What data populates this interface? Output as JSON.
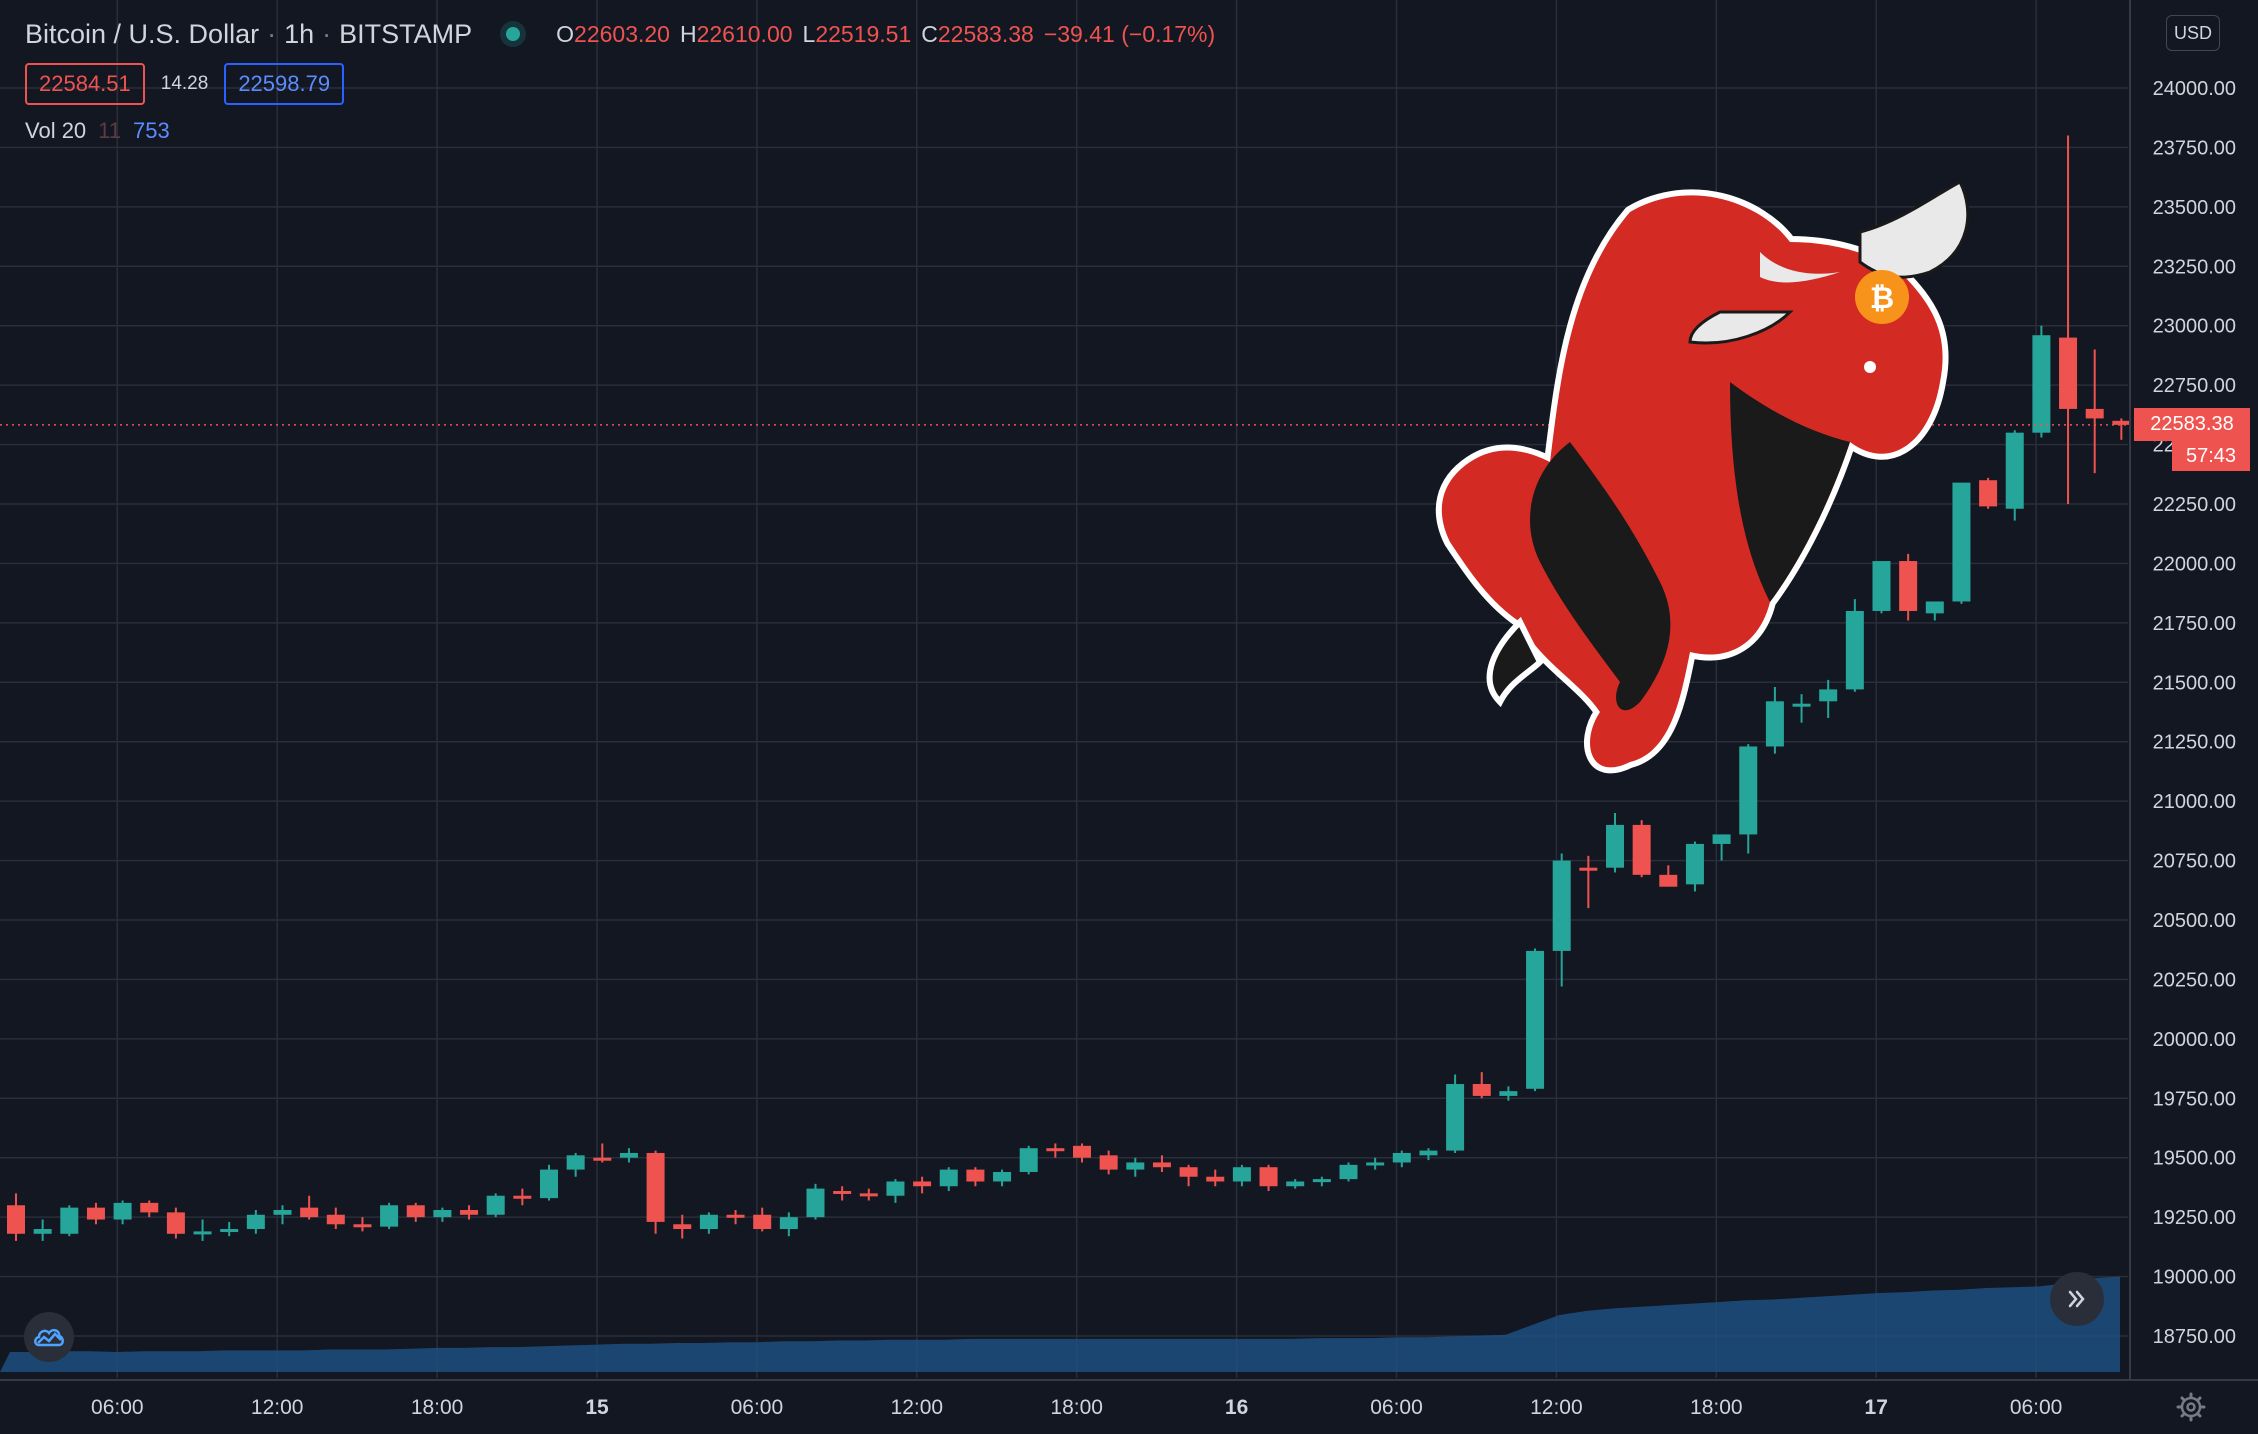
{
  "header": {
    "symbol": "Bitcoin / U.S. Dollar",
    "interval": "1h",
    "exchange": "BITSTAMP",
    "ohlc": {
      "o_label": "O",
      "o_value": "22603.20",
      "h_label": "H",
      "h_value": "22610.00",
      "l_label": "L",
      "l_value": "22519.51",
      "c_label": "C",
      "c_value": "22583.38",
      "change": "−39.41 (−0.17%)"
    },
    "sell_price": "22584.51",
    "spread": "14.28",
    "buy_price": "22598.79",
    "volume": {
      "label": "Vol 20",
      "v1": "11",
      "v2": "753"
    }
  },
  "price_scale": {
    "currency": "USD",
    "last_price": "22583.38",
    "countdown": "57:43"
  },
  "colors": {
    "up": "#26a69a",
    "down": "#ef5350",
    "background": "#131722",
    "grid": "#2a2e39",
    "volume_area": "#1f4f80"
  },
  "icons": {
    "logo": "tradingview-cloud-icon",
    "scroll": "double-chevron-right-icon",
    "settings": "gear-icon",
    "mascot": "bitcoin-bull-icon"
  },
  "chart_data": {
    "type": "candlestick",
    "y_ticks": [
      "24000.00",
      "23750.00",
      "23500.00",
      "23250.00",
      "23000.00",
      "22750.00",
      "22500.00",
      "22250.00",
      "22000.00",
      "21750.00",
      "21500.00",
      "21250.00",
      "21000.00",
      "20750.00",
      "20500.00",
      "20250.00",
      "20000.00",
      "19750.00",
      "19500.00",
      "19250.00",
      "19000.00",
      "18750.00"
    ],
    "y_tick_values": [
      24000,
      23750,
      23500,
      23250,
      23000,
      22750,
      22500,
      22250,
      22000,
      21750,
      21500,
      21250,
      21000,
      20750,
      20500,
      20250,
      20000,
      19750,
      19500,
      19250,
      19000,
      18750
    ],
    "ylim": [
      18600,
      24200
    ],
    "x_ticks": [
      {
        "label": "06:00",
        "index": 2
      },
      {
        "label": "12:00",
        "index": 8
      },
      {
        "label": "18:00",
        "index": 14
      },
      {
        "label": "15",
        "index": 20,
        "bold": true
      },
      {
        "label": "06:00",
        "index": 26
      },
      {
        "label": "12:00",
        "index": 32
      },
      {
        "label": "18:00",
        "index": 38
      },
      {
        "label": "16",
        "index": 44,
        "bold": true
      },
      {
        "label": "06:00",
        "index": 50
      },
      {
        "label": "12:00",
        "index": 56
      },
      {
        "label": "18:00",
        "index": 62
      },
      {
        "label": "17",
        "index": 68,
        "bold": true
      },
      {
        "label": "06:00",
        "index": 74
      }
    ],
    "candles": [
      [
        19300,
        19350,
        19150,
        19180
      ],
      [
        19180,
        19240,
        19150,
        19200
      ],
      [
        19180,
        19300,
        19170,
        19290
      ],
      [
        19290,
        19310,
        19220,
        19240
      ],
      [
        19240,
        19320,
        19220,
        19310
      ],
      [
        19310,
        19320,
        19250,
        19270
      ],
      [
        19270,
        19290,
        19160,
        19180
      ],
      [
        19180,
        19240,
        19150,
        19190
      ],
      [
        19190,
        19230,
        19170,
        19200
      ],
      [
        19200,
        19280,
        19180,
        19260
      ],
      [
        19260,
        19300,
        19220,
        19280
      ],
      [
        19290,
        19340,
        19240,
        19250
      ],
      [
        19260,
        19290,
        19200,
        19220
      ],
      [
        19220,
        19250,
        19190,
        19210
      ],
      [
        19210,
        19310,
        19200,
        19300
      ],
      [
        19300,
        19310,
        19230,
        19250
      ],
      [
        19250,
        19290,
        19230,
        19280
      ],
      [
        19280,
        19300,
        19240,
        19260
      ],
      [
        19260,
        19350,
        19250,
        19340
      ],
      [
        19340,
        19370,
        19300,
        19330
      ],
      [
        19330,
        19470,
        19320,
        19450
      ],
      [
        19450,
        19520,
        19420,
        19510
      ],
      [
        19500,
        19560,
        19480,
        19490
      ],
      [
        19500,
        19540,
        19480,
        19520
      ],
      [
        19520,
        19530,
        19180,
        19230
      ],
      [
        19220,
        19260,
        19160,
        19200
      ],
      [
        19200,
        19270,
        19180,
        19260
      ],
      [
        19260,
        19280,
        19220,
        19250
      ],
      [
        19260,
        19290,
        19190,
        19200
      ],
      [
        19200,
        19270,
        19170,
        19250
      ],
      [
        19250,
        19390,
        19240,
        19370
      ],
      [
        19360,
        19380,
        19320,
        19350
      ],
      [
        19350,
        19370,
        19320,
        19340
      ],
      [
        19340,
        19410,
        19310,
        19400
      ],
      [
        19400,
        19420,
        19350,
        19380
      ],
      [
        19380,
        19460,
        19360,
        19450
      ],
      [
        19450,
        19460,
        19380,
        19400
      ],
      [
        19400,
        19450,
        19380,
        19440
      ],
      [
        19440,
        19550,
        19430,
        19540
      ],
      [
        19540,
        19560,
        19500,
        19530
      ],
      [
        19550,
        19560,
        19480,
        19500
      ],
      [
        19510,
        19530,
        19430,
        19450
      ],
      [
        19450,
        19500,
        19420,
        19480
      ],
      [
        19480,
        19510,
        19440,
        19460
      ],
      [
        19460,
        19470,
        19380,
        19420
      ],
      [
        19420,
        19450,
        19380,
        19400
      ],
      [
        19400,
        19470,
        19380,
        19460
      ],
      [
        19460,
        19470,
        19360,
        19380
      ],
      [
        19380,
        19410,
        19370,
        19400
      ],
      [
        19400,
        19420,
        19380,
        19410
      ],
      [
        19410,
        19480,
        19400,
        19470
      ],
      [
        19470,
        19500,
        19450,
        19480
      ],
      [
        19480,
        19530,
        19460,
        19520
      ],
      [
        19510,
        19540,
        19490,
        19530
      ],
      [
        19530,
        19850,
        19520,
        19810
      ],
      [
        19810,
        19860,
        19750,
        19760
      ],
      [
        19760,
        19800,
        19740,
        19780
      ],
      [
        19790,
        20380,
        19780,
        20370
      ],
      [
        20370,
        20780,
        20220,
        20750
      ],
      [
        20720,
        20770,
        20550,
        20710
      ],
      [
        20720,
        20950,
        20700,
        20900
      ],
      [
        20900,
        20920,
        20680,
        20690
      ],
      [
        20690,
        20730,
        20650,
        20640
      ],
      [
        20650,
        20830,
        20620,
        20820
      ],
      [
        20820,
        20860,
        20750,
        20860
      ],
      [
        20860,
        21240,
        20780,
        21230
      ],
      [
        21230,
        21480,
        21200,
        21420
      ],
      [
        21400,
        21450,
        21330,
        21410
      ],
      [
        21420,
        21510,
        21350,
        21470
      ],
      [
        21470,
        21850,
        21460,
        21800
      ],
      [
        21800,
        22000,
        21790,
        22010
      ],
      [
        22010,
        22040,
        21760,
        21800
      ],
      [
        21790,
        21830,
        21760,
        21840
      ],
      [
        21840,
        22330,
        21830,
        22340
      ],
      [
        22350,
        22360,
        22230,
        22240
      ],
      [
        22230,
        22560,
        22180,
        22550
      ],
      [
        22550,
        23000,
        22530,
        22960
      ],
      [
        22950,
        23800,
        22250,
        22650
      ],
      [
        22650,
        22900,
        22380,
        22610
      ],
      [
        22600,
        22610,
        22520,
        22583
      ]
    ],
    "volume_area": [
      0.0,
      0.0,
      0.01,
      0.01,
      0.0,
      0.01,
      0.01,
      0.01,
      0.02,
      0.02,
      0.02,
      0.02,
      0.03,
      0.03,
      0.03,
      0.04,
      0.05,
      0.05,
      0.06,
      0.06,
      0.07,
      0.08,
      0.09,
      0.1,
      0.1,
      0.11,
      0.11,
      0.12,
      0.12,
      0.13,
      0.13,
      0.14,
      0.14,
      0.15,
      0.15,
      0.15,
      0.16,
      0.16,
      0.16,
      0.16,
      0.16,
      0.16,
      0.16,
      0.16,
      0.16,
      0.16,
      0.16,
      0.16,
      0.16,
      0.17,
      0.17,
      0.17,
      0.18,
      0.18,
      0.19,
      0.2,
      0.21,
      0.33,
      0.45,
      0.5,
      0.53,
      0.55,
      0.57,
      0.59,
      0.61,
      0.63,
      0.64,
      0.66,
      0.68,
      0.7,
      0.72,
      0.73,
      0.75,
      0.76,
      0.78,
      0.79,
      0.8,
      0.84,
      0.9,
      0.92
    ]
  }
}
